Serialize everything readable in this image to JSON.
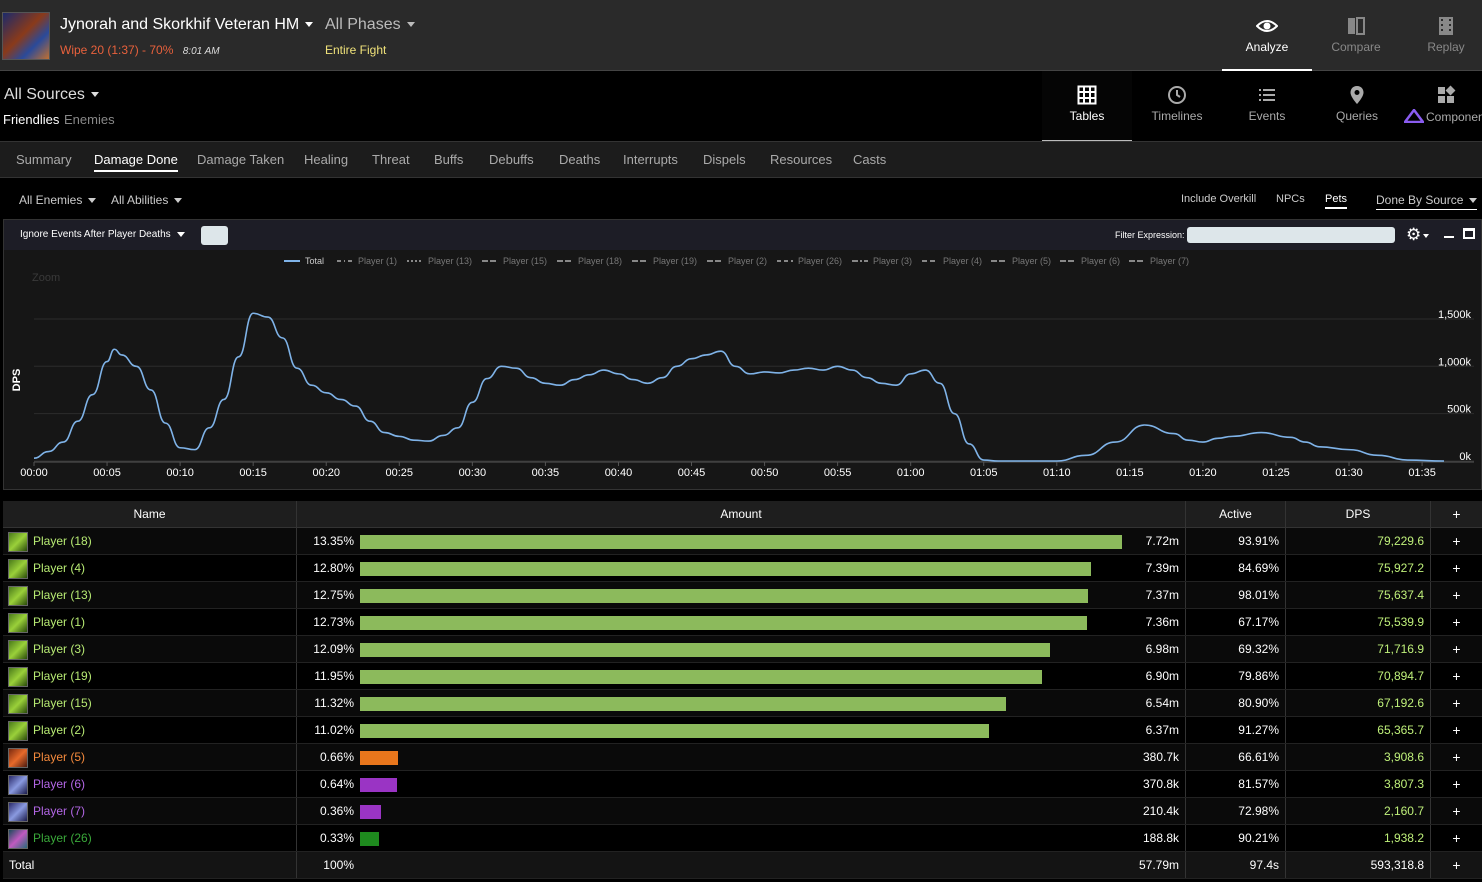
{
  "header": {
    "fight_title": "Jynorah and Skorkhif Veteran HM",
    "fight_result": "Wipe 20 (1:37) - 70%",
    "fight_time": "8:01 AM",
    "phase_title": "All Phases",
    "phase_sub": "Entire Fight",
    "modes": [
      {
        "label": "Analyze",
        "icon": "eye-icon"
      },
      {
        "label": "Compare",
        "icon": "compare-icon"
      },
      {
        "label": "Replay",
        "icon": "replay-icon"
      }
    ]
  },
  "sources": {
    "title": "All Sources",
    "friendlies": "Friendlies",
    "enemies": "Enemies"
  },
  "views": [
    {
      "label": "Tables",
      "icon": "grid-icon"
    },
    {
      "label": "Timelines",
      "icon": "clock-icon"
    },
    {
      "label": "Events",
      "icon": "list-icon"
    },
    {
      "label": "Queries",
      "icon": "map-pin-icon"
    },
    {
      "label": "Componen",
      "icon": "components-icon"
    }
  ],
  "tabs": [
    "Summary",
    "Damage Done",
    "Damage Taken",
    "Healing",
    "Threat",
    "Buffs",
    "Debuffs",
    "Deaths",
    "Interrupts",
    "Dispels",
    "Resources",
    "Casts"
  ],
  "filters": {
    "enemies": "All Enemies",
    "abilities": "All Abilities",
    "include_overkill": "Include Overkill",
    "npcs": "NPCs",
    "pets": "Pets",
    "done_by": "Done By Source"
  },
  "chart_toolbar": {
    "ignore_events": "Ignore Events After Player Deaths",
    "filter_label": "Filter Expression:",
    "filter_value": ""
  },
  "chart_data": {
    "type": "line",
    "zoom_label": "Zoom",
    "ylabel": "DPS",
    "legend": [
      "Total",
      "Player (1)",
      "Player (13)",
      "Player (15)",
      "Player (18)",
      "Player (19)",
      "Player (2)",
      "Player (26)",
      "Player (3)",
      "Player (4)",
      "Player (5)",
      "Player (6)",
      "Player (7)"
    ],
    "y_ticks": [
      "0k",
      "500k",
      "1,000k",
      "1,500k"
    ],
    "x_ticks": [
      "00:00",
      "00:05",
      "00:10",
      "00:15",
      "00:20",
      "00:25",
      "00:30",
      "00:35",
      "00:40",
      "00:45",
      "00:50",
      "00:55",
      "01:00",
      "01:05",
      "01:10",
      "01:15",
      "01:20",
      "01:25",
      "01:30",
      "01:35"
    ],
    "xlim": [
      0,
      96.5
    ],
    "ylim": [
      0,
      1700000
    ],
    "series": [
      {
        "name": "Total",
        "color": "#7fb3e8",
        "x": [
          0,
          1,
          2,
          3,
          4,
          5,
          5.5,
          6,
          7,
          8,
          9,
          10,
          11,
          12,
          13,
          14,
          15,
          16,
          17,
          18,
          19,
          20,
          21,
          22,
          23,
          24,
          25,
          26,
          27,
          28,
          29,
          30,
          31,
          32,
          33,
          34,
          35,
          36,
          37,
          38,
          39,
          40,
          41,
          42,
          43,
          44,
          45,
          46,
          47,
          48,
          49,
          50,
          51,
          52,
          53,
          54,
          55,
          56,
          57,
          58,
          59,
          60,
          61,
          62,
          63,
          64,
          65,
          66,
          67,
          68,
          70,
          72,
          74,
          76,
          78,
          79,
          80,
          81,
          82,
          84,
          86,
          87,
          88,
          90,
          92,
          94,
          96.5
        ],
        "y": [
          30000,
          100000,
          200000,
          420000,
          700000,
          1050000,
          1180000,
          1120000,
          1000000,
          750000,
          400000,
          140000,
          120000,
          350000,
          650000,
          1100000,
          1560000,
          1520000,
          1300000,
          980000,
          800000,
          720000,
          650000,
          580000,
          420000,
          300000,
          260000,
          220000,
          210000,
          270000,
          350000,
          620000,
          870000,
          1000000,
          980000,
          880000,
          820000,
          800000,
          860000,
          910000,
          960000,
          920000,
          860000,
          820000,
          880000,
          1000000,
          1080000,
          1120000,
          1160000,
          1000000,
          920000,
          940000,
          930000,
          960000,
          980000,
          960000,
          1000000,
          960000,
          880000,
          820000,
          800000,
          920000,
          960000,
          820000,
          500000,
          180000,
          10000,
          0,
          0,
          0,
          0,
          60000,
          200000,
          380000,
          290000,
          220000,
          200000,
          240000,
          260000,
          300000,
          250000,
          200000,
          150000,
          120000,
          60000,
          10000,
          0
        ]
      }
    ]
  },
  "table": {
    "headers": {
      "name": "Name",
      "amount": "Amount",
      "active": "Active",
      "dps": "DPS",
      "plus": "+"
    },
    "rows": [
      {
        "name": "Player (18)",
        "pct": "13.35%",
        "share": 13.35,
        "amount": "7.72m",
        "active": "93.91%",
        "dps": "79,229.6",
        "bar_color": "#8cba5c",
        "name_color": "#b7ea73",
        "icon": "spec-icon-green"
      },
      {
        "name": "Player (4)",
        "pct": "12.80%",
        "share": 12.8,
        "amount": "7.39m",
        "active": "84.69%",
        "dps": "75,927.2",
        "bar_color": "#8cba5c",
        "name_color": "#b7ea73",
        "icon": "spec-icon-green"
      },
      {
        "name": "Player (13)",
        "pct": "12.75%",
        "share": 12.75,
        "amount": "7.37m",
        "active": "98.01%",
        "dps": "75,637.4",
        "bar_color": "#8cba5c",
        "name_color": "#b7ea73",
        "icon": "spec-icon-green"
      },
      {
        "name": "Player (1)",
        "pct": "12.73%",
        "share": 12.73,
        "amount": "7.36m",
        "active": "67.17%",
        "dps": "75,539.9",
        "bar_color": "#8cba5c",
        "name_color": "#b7ea73",
        "icon": "spec-icon-green"
      },
      {
        "name": "Player (3)",
        "pct": "12.09%",
        "share": 12.09,
        "amount": "6.98m",
        "active": "69.32%",
        "dps": "71,716.9",
        "bar_color": "#8cba5c",
        "name_color": "#b7ea73",
        "icon": "spec-icon-green"
      },
      {
        "name": "Player (19)",
        "pct": "11.95%",
        "share": 11.95,
        "amount": "6.90m",
        "active": "79.86%",
        "dps": "70,894.7",
        "bar_color": "#8cba5c",
        "name_color": "#b7ea73",
        "icon": "spec-icon-green"
      },
      {
        "name": "Player (15)",
        "pct": "11.32%",
        "share": 11.32,
        "amount": "6.54m",
        "active": "80.90%",
        "dps": "67,192.6",
        "bar_color": "#8cba5c",
        "name_color": "#b7ea73",
        "icon": "spec-icon-green"
      },
      {
        "name": "Player (2)",
        "pct": "11.02%",
        "share": 11.02,
        "amount": "6.37m",
        "active": "91.27%",
        "dps": "65,365.7",
        "bar_color": "#8cba5c",
        "name_color": "#b7ea73",
        "icon": "spec-icon-green"
      },
      {
        "name": "Player (5)",
        "pct": "0.66%",
        "share": 0.66,
        "amount": "380.7k",
        "active": "66.61%",
        "dps": "3,908.6",
        "bar_color": "#e8761c",
        "name_color": "#f58a3c",
        "icon": "spec-icon-orange"
      },
      {
        "name": "Player (6)",
        "pct": "0.64%",
        "share": 0.64,
        "amount": "370.8k",
        "active": "81.57%",
        "dps": "3,807.3",
        "bar_color": "#9a34c4",
        "name_color": "#b366e6",
        "icon": "spec-icon-purple"
      },
      {
        "name": "Player (7)",
        "pct": "0.36%",
        "share": 0.36,
        "amount": "210.4k",
        "active": "72.98%",
        "dps": "2,160.7",
        "bar_color": "#9a34c4",
        "name_color": "#b366e6",
        "icon": "spec-icon-purple"
      },
      {
        "name": "Player (26)",
        "pct": "0.33%",
        "share": 0.33,
        "amount": "188.8k",
        "active": "90.21%",
        "dps": "1,938.2",
        "bar_color": "#1e8a1e",
        "name_color": "#3aa83a",
        "icon": "spec-icon-teal"
      }
    ],
    "total": {
      "name": "Total",
      "pct": "100%",
      "amount": "57.79m",
      "active": "97.4s",
      "dps": "593,318.8"
    }
  }
}
